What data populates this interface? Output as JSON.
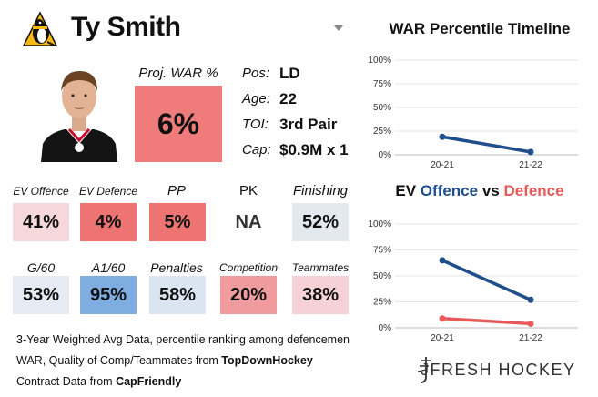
{
  "header": {
    "name": "Ty Smith"
  },
  "war": {
    "label": "Proj. WAR %",
    "value": "6%",
    "color": "#ef7b7b"
  },
  "info": [
    {
      "label": "Pos:",
      "value": "LD"
    },
    {
      "label": "Age:",
      "value": "22"
    },
    {
      "label": "TOI:",
      "value": "3rd Pair"
    },
    {
      "label": "Cap:",
      "value": "$0.9M x 1"
    }
  ],
  "stats": [
    {
      "label": "EV Offence",
      "value": "41%",
      "color": "#f6d8dc"
    },
    {
      "label": "EV Defence",
      "value": "4%",
      "color": "#ee7474"
    },
    {
      "label": "PP",
      "value": "5%",
      "color": "#ee7474"
    },
    {
      "label": "PK",
      "value": "NA",
      "color": "#ffffff"
    },
    {
      "label": "Finishing",
      "value": "52%",
      "color": "#e4e8ef"
    },
    {
      "label": "G/60",
      "value": "53%",
      "color": "#e6ebf3"
    },
    {
      "label": "A1/60",
      "value": "95%",
      "color": "#7fade0"
    },
    {
      "label": "Penalties",
      "value": "58%",
      "color": "#dbe5f1"
    },
    {
      "label": "Competition",
      "value": "20%",
      "color": "#f09b9d"
    },
    {
      "label": "Teammates",
      "value": "38%",
      "color": "#f6d1d6"
    }
  ],
  "notes": {
    "line1": "3-Year Weighted Avg Data, percentile ranking among defencemen",
    "line2_prefix": "WAR, Quality of Comp/Teammates from ",
    "line2_source": "TopDownHockey",
    "line3_prefix": "Contract Data from ",
    "line3_source": "CapFriendly"
  },
  "brand": "JFRESH HOCKEY",
  "colors": {
    "blue": "#1f4e8c",
    "red": "#e85a5a"
  },
  "chart_data": [
    {
      "type": "line",
      "title": "WAR Percentile Timeline",
      "categories": [
        "20-21",
        "21-22"
      ],
      "series": [
        {
          "values": [
            19,
            3
          ],
          "color": "#1f4e8c"
        }
      ],
      "yticks": [
        "100%",
        "75%",
        "50%",
        "25%",
        "0%"
      ],
      "ylim": [
        0,
        100
      ]
    },
    {
      "type": "line",
      "title_parts": [
        "EV ",
        "Offence",
        " vs ",
        "Defence"
      ],
      "categories": [
        "20-21",
        "21-22"
      ],
      "series": [
        {
          "name": "Offence",
          "values": [
            65,
            27
          ],
          "color": "#1f4e8c"
        },
        {
          "name": "Defence",
          "values": [
            9,
            4
          ],
          "color": "#e85a5a"
        }
      ],
      "yticks": [
        "100%",
        "75%",
        "50%",
        "25%",
        "0%"
      ],
      "ylim": [
        0,
        100
      ]
    }
  ]
}
